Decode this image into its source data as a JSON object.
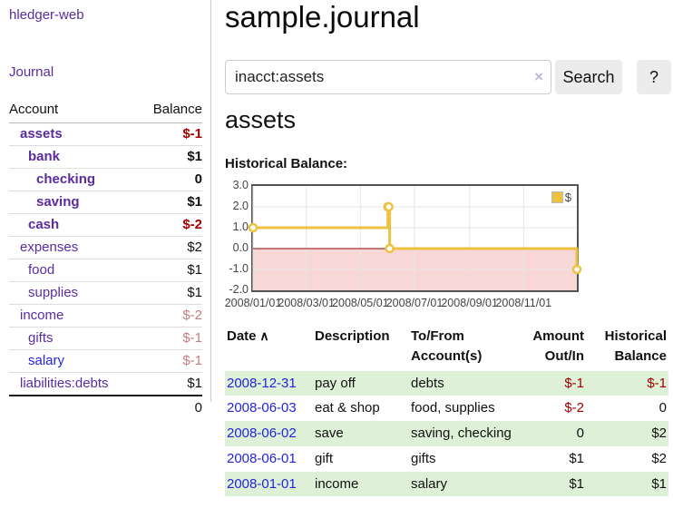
{
  "colors": {
    "accent_purple": "#5a2ca0",
    "link_blue": "#2424dd",
    "negative_strong": "#a40000",
    "negative_faded": "#c47e7e",
    "row_green": "#dff0d8",
    "series_gold": "#edc240",
    "negative_region": "#f8d8d6",
    "zero_line": "#8b0000",
    "chart_border": "#545454",
    "gridline": "#e6e6e6"
  },
  "sidebar": {
    "app_title": "hledger-web",
    "nav": {
      "journal_label": "Journal"
    },
    "accounts": {
      "header_account": "Account",
      "header_balance": "Balance",
      "rows": [
        {
          "name": "assets",
          "indent": 0,
          "bold": true,
          "balance": "$-1",
          "balance_class": "neg"
        },
        {
          "name": "bank",
          "indent": 1,
          "bold": true,
          "balance": "$1",
          "balance_class": ""
        },
        {
          "name": "checking",
          "indent": 2,
          "bold": true,
          "balance": "0",
          "balance_class": ""
        },
        {
          "name": "saving",
          "indent": 2,
          "bold": true,
          "balance": "$1",
          "balance_class": ""
        },
        {
          "name": "cash",
          "indent": 1,
          "bold": true,
          "balance": "$-2",
          "balance_class": "neg"
        },
        {
          "name": "expenses",
          "indent": 0,
          "bold": false,
          "balance": "$2",
          "balance_class": ""
        },
        {
          "name": "food",
          "indent": 1,
          "bold": false,
          "balance": "$1",
          "balance_class": ""
        },
        {
          "name": "supplies",
          "indent": 1,
          "bold": false,
          "balance": "$1",
          "balance_class": ""
        },
        {
          "name": "income",
          "indent": 0,
          "bold": false,
          "balance": "$-2",
          "balance_class": "neg-faded"
        },
        {
          "name": "gifts",
          "indent": 1,
          "bold": false,
          "balance": "$-1",
          "balance_class": "neg-faded"
        },
        {
          "name": "salary",
          "indent": 1,
          "bold": false,
          "balance": "$-1",
          "balance_class": "neg-faded",
          "blue_link": true
        },
        {
          "name": "liabilities:debts",
          "indent": 0,
          "bold": false,
          "balance": "$1",
          "balance_class": ""
        }
      ],
      "total": "0"
    }
  },
  "header": {
    "title": "sample.journal"
  },
  "search": {
    "value": "inacct:assets",
    "clear_icon": "×",
    "search_label": "Search",
    "help_label": "?"
  },
  "section": {
    "title": "assets",
    "chart_heading": "Historical Balance:"
  },
  "chart_data": {
    "type": "line",
    "step": true,
    "title": "Historical Balance",
    "series": [
      {
        "name": "$",
        "color": "#edc240",
        "points": [
          [
            "2008/01/01",
            1
          ],
          [
            "2008/06/01",
            2
          ],
          [
            "2008/06/02",
            2
          ],
          [
            "2008/06/03",
            0
          ],
          [
            "2008/12/31",
            -1
          ]
        ]
      }
    ],
    "xrange": [
      "2008/01/01",
      "2008/12/31"
    ],
    "ylim": [
      -2,
      3
    ],
    "ytick_labels": [
      "3.0",
      "2.0",
      "1.0",
      "0.0",
      "-1.0",
      "-2.0"
    ],
    "yticks": [
      3,
      2,
      1,
      0,
      -1,
      -2
    ],
    "xticks": [
      "2008/01/01",
      "2008/03/01",
      "2008/05/01",
      "2008/07/01",
      "2008/09/01",
      "2008/11/01"
    ],
    "grid": true,
    "legend": {
      "label": "$",
      "position": "top-right"
    },
    "negative_region_shaded": true
  },
  "register": {
    "sort_icon": "∧",
    "headers": [
      {
        "line1": "Date",
        "line2": "",
        "align": "left",
        "sorted": true
      },
      {
        "line1": "Description",
        "line2": "",
        "align": "left"
      },
      {
        "line1": "To/From",
        "line2": "Account(s)",
        "align": "left"
      },
      {
        "line1": "Amount",
        "line2": "Out/In",
        "align": "right"
      },
      {
        "line1": "Historical",
        "line2": "Balance",
        "align": "right"
      }
    ],
    "rows": [
      {
        "date": "2008-12-31",
        "description": "pay off",
        "accounts": "debts",
        "amount": "$-1",
        "balance": "$-1"
      },
      {
        "date": "2008-06-03",
        "description": "eat & shop",
        "accounts": "food, supplies",
        "amount": "$-2",
        "balance": "0"
      },
      {
        "date": "2008-06-02",
        "description": "save",
        "accounts": "saving, checking",
        "amount": "0",
        "balance": "$2"
      },
      {
        "date": "2008-06-01",
        "description": "gift",
        "accounts": "gifts",
        "amount": "$1",
        "balance": "$2"
      },
      {
        "date": "2008-01-01",
        "description": "income",
        "accounts": "salary",
        "amount": "$1",
        "balance": "$1"
      }
    ]
  }
}
